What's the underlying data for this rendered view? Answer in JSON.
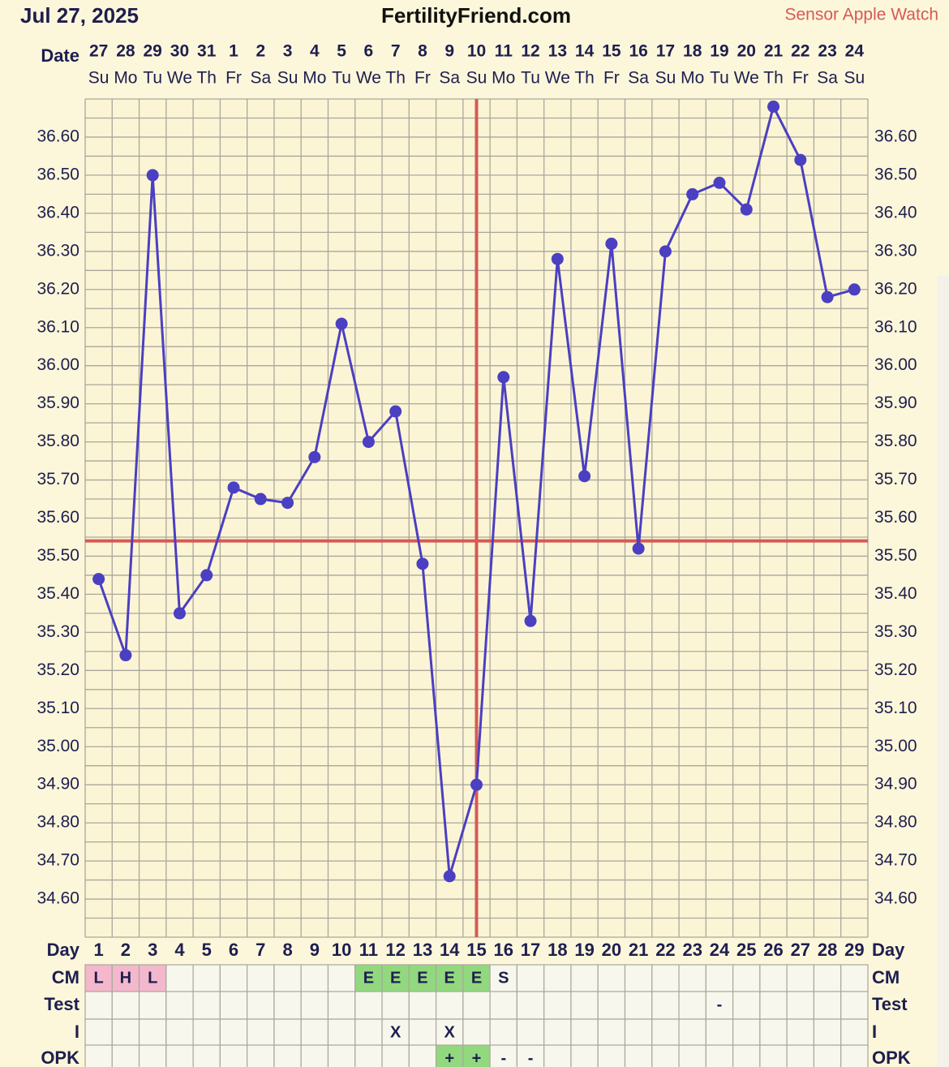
{
  "chart_data": {
    "type": "line",
    "chart_date": "Jul 27, 2025",
    "title": "FertilityFriend.com",
    "sensor": "Sensor Apple Watch",
    "row_labels": {
      "date": "Date",
      "day": "Day",
      "cm": "CM",
      "test": "Test",
      "intercourse": "I",
      "opk": "OPK"
    },
    "categories": [
      "27",
      "28",
      "29",
      "30",
      "31",
      "1",
      "2",
      "3",
      "4",
      "5",
      "6",
      "7",
      "8",
      "9",
      "10",
      "11",
      "12",
      "13",
      "14",
      "15",
      "16",
      "17",
      "18",
      "19",
      "20",
      "21",
      "22",
      "23",
      "24"
    ],
    "weekdays": [
      "Su",
      "Mo",
      "Tu",
      "We",
      "Th",
      "Fr",
      "Sa",
      "Su",
      "Mo",
      "Tu",
      "We",
      "Th",
      "Fr",
      "Sa",
      "Su",
      "Mo",
      "Tu",
      "We",
      "Th",
      "Fr",
      "Sa",
      "Su",
      "Mo",
      "Tu",
      "We",
      "Th",
      "Fr",
      "Sa",
      "Su"
    ],
    "cycle_days": [
      1,
      2,
      3,
      4,
      5,
      6,
      7,
      8,
      9,
      10,
      11,
      12,
      13,
      14,
      15,
      16,
      17,
      18,
      19,
      20,
      21,
      22,
      23,
      24,
      25,
      26,
      27,
      28,
      29
    ],
    "values": [
      35.44,
      35.24,
      36.5,
      35.35,
      35.45,
      35.68,
      35.65,
      35.64,
      35.76,
      36.11,
      35.8,
      35.88,
      35.48,
      34.66,
      34.9,
      35.97,
      35.33,
      36.28,
      35.71,
      36.32,
      35.52,
      36.3,
      36.45,
      36.48,
      36.41,
      36.68,
      36.54,
      36.18,
      36.2
    ],
    "color": "#4b3fc2",
    "coverline": 35.54,
    "ovulation_day": 15,
    "marker_color": "#d65a55",
    "ylim": [
      34.5,
      36.7
    ],
    "yticks": [
      {
        "value": 34.6,
        "label": "34.60"
      },
      {
        "value": 34.7,
        "label": "34.70"
      },
      {
        "value": 34.8,
        "label": "34.80"
      },
      {
        "value": 34.9,
        "label": "34.90"
      },
      {
        "value": 35.0,
        "label": "35.00"
      },
      {
        "value": 35.1,
        "label": "35.10"
      },
      {
        "value": 35.2,
        "label": "35.20"
      },
      {
        "value": 35.3,
        "label": "35.30"
      },
      {
        "value": 35.4,
        "label": "35.40"
      },
      {
        "value": 35.5,
        "label": "35.50"
      },
      {
        "value": 35.6,
        "label": "35.60"
      },
      {
        "value": 35.7,
        "label": "35.70"
      },
      {
        "value": 35.8,
        "label": "35.80"
      },
      {
        "value": 35.9,
        "label": "35.90"
      },
      {
        "value": 36.0,
        "label": "36.00"
      },
      {
        "value": 36.1,
        "label": "36.10"
      },
      {
        "value": 36.2,
        "label": "36.20"
      },
      {
        "value": 36.3,
        "label": "36.30"
      },
      {
        "value": 36.4,
        "label": "36.40"
      },
      {
        "value": 36.5,
        "label": "36.50"
      },
      {
        "value": 36.6,
        "label": "36.60"
      }
    ],
    "grid": true,
    "cm": [
      "L",
      "H",
      "L",
      null,
      null,
      null,
      null,
      null,
      null,
      null,
      "E",
      "E",
      "E",
      "E",
      "E",
      "S",
      null,
      null,
      null,
      null,
      null,
      null,
      null,
      null,
      null,
      null,
      null,
      null,
      null
    ],
    "test": [
      null,
      null,
      null,
      null,
      null,
      null,
      null,
      null,
      null,
      null,
      null,
      null,
      null,
      null,
      null,
      null,
      null,
      null,
      null,
      null,
      null,
      null,
      null,
      "-",
      null,
      null,
      null,
      null,
      null
    ],
    "intercourse": [
      null,
      null,
      null,
      null,
      null,
      null,
      null,
      null,
      null,
      null,
      null,
      "X",
      null,
      "X",
      null,
      null,
      null,
      null,
      null,
      null,
      null,
      null,
      null,
      null,
      null,
      null,
      null,
      null,
      null
    ],
    "opk": [
      null,
      null,
      null,
      null,
      null,
      null,
      null,
      null,
      null,
      null,
      null,
      null,
      null,
      "+",
      "+",
      "-",
      "-",
      null,
      null,
      null,
      null,
      null,
      null,
      null,
      null,
      null,
      null,
      null,
      null
    ],
    "cell_colors": {
      "L": "#f4b8cc",
      "H": "#f4b8cc",
      "E": "#92d87e",
      "+": "#92d87e"
    }
  }
}
